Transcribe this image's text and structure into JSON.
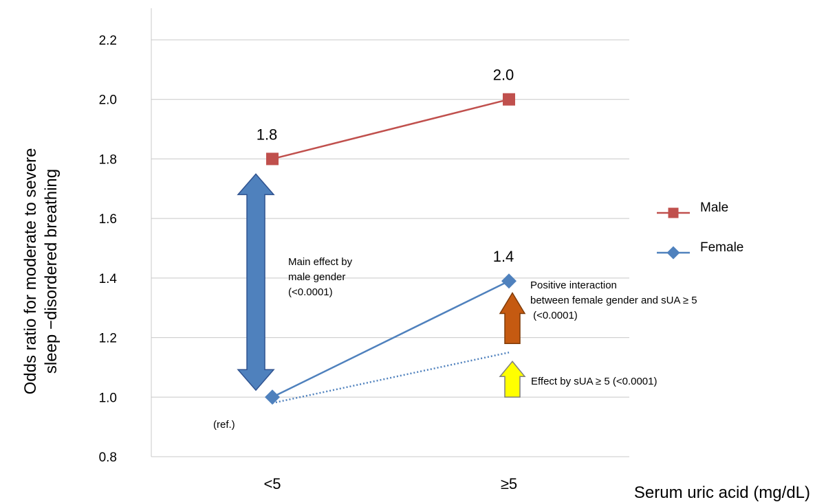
{
  "chart_data": {
    "type": "line",
    "categories": [
      "<5",
      "≥5"
    ],
    "ylabel": "Odds ratio for moderate to severe sleep −disordered breathing",
    "ylabel_lines": [
      "Odds ratio for moderate to severe",
      "sleep −disordered breathing"
    ],
    "xlabel": "Serum uric acid (mg/dL)",
    "ylim": [
      0.8,
      2.2
    ],
    "yticks": [
      "0.8",
      "1.0",
      "1.2",
      "1.4",
      "1.6",
      "1.8",
      "2.0",
      "2.2"
    ],
    "grid": true,
    "legend_position": "right",
    "series": [
      {
        "name": "Male",
        "values": [
          1.8,
          2.0
        ],
        "data_labels": [
          "1.8",
          "2.0"
        ],
        "color": "#c0504d",
        "marker": "square"
      },
      {
        "name": "Female",
        "values": [
          1.0,
          1.39
        ],
        "data_labels": [
          "",
          "1.4"
        ],
        "color": "#4f81bd",
        "marker": "diamond"
      }
    ],
    "expected_line": {
      "from": 0.98,
      "to": 1.15,
      "style": "dotted",
      "color": "#4f81bd"
    },
    "ref_label": "(ref.)",
    "annotations": {
      "main_effect": {
        "lines": [
          "Main effect by",
          "male gender",
          "(<0.0001)"
        ],
        "from": 1.0,
        "to": 1.8,
        "color": "#4f81bd"
      },
      "interaction": {
        "lines": [
          "Positive interaction",
          "between female gender and sUA ≥ 5",
          " (<0.0001)"
        ],
        "from": 1.18,
        "to": 1.35,
        "color": "#c55a11"
      },
      "sua_effect": {
        "text": "Effect by sUA ≥ 5  (<0.0001)",
        "from": 1.0,
        "to": 1.12,
        "color": "#ffff00"
      }
    }
  }
}
